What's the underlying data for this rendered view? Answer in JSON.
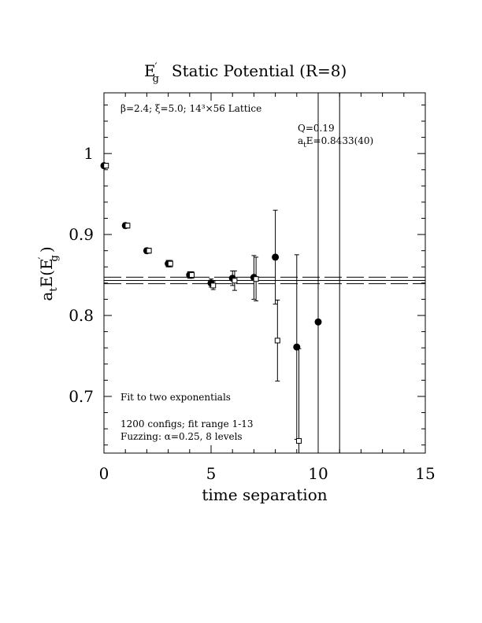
{
  "chart_data": {
    "type": "scatter",
    "title_prefix": "E",
    "title_prime": "′",
    "title_sub": "g",
    "title_rest": "Static Potential (R=8)",
    "ylabel": "a_tE(E'_g)",
    "xlabel": "time separation",
    "xlim": [
      0,
      15
    ],
    "ylim": [
      0.63,
      1.075
    ],
    "x_major_ticks": [
      0,
      5,
      10,
      15
    ],
    "x_tick_labels": [
      "0",
      "5",
      "10",
      "15"
    ],
    "y_major_ticks": [
      0.7,
      0.8,
      0.9,
      1.0
    ],
    "y_tick_labels": [
      "0.7",
      "0.8",
      "0.9",
      "1"
    ],
    "grid": false,
    "annotations": {
      "lattice": "β=2.4; ξ=5.0; 14³×56 Lattice",
      "q": "Q=0.19",
      "energy": "a_tE=0.8433(40)",
      "fit": "Fit to two exponentials",
      "configs": "1200 configs; fit range 1-13",
      "fuzzing": "Fuzzing: α=0.25, 8 levels"
    },
    "fit": {
      "value": 0.8433,
      "error": 0.004
    },
    "series": [
      {
        "marker": "filled-circle",
        "points": [
          {
            "x": 0,
            "y": 0.985,
            "err": 0.003
          },
          {
            "x": 1,
            "y": 0.911,
            "err": 0.003
          },
          {
            "x": 2,
            "y": 0.88,
            "err": 0.003
          },
          {
            "x": 3,
            "y": 0.864,
            "err": 0.004
          },
          {
            "x": 4,
            "y": 0.85,
            "err": 0.004
          },
          {
            "x": 5,
            "y": 0.84,
            "err": 0.005
          },
          {
            "x": 6,
            "y": 0.846,
            "err": 0.009
          },
          {
            "x": 7,
            "y": 0.847,
            "err": 0.027
          },
          {
            "x": 8,
            "y": 0.872,
            "err": 0.058
          },
          {
            "x": 9,
            "y": 0.761,
            "err": 0.114
          },
          {
            "x": 10,
            "y": 0.792,
            "err": 0.5
          },
          {
            "x": 11,
            "y": 0.9,
            "err": 0.6,
            "marker_hidden": true
          }
        ]
      },
      {
        "marker": "open-square",
        "points": [
          {
            "x": 0.1,
            "y": 0.985,
            "err": 0.003
          },
          {
            "x": 1.1,
            "y": 0.911,
            "err": 0.003
          },
          {
            "x": 2.1,
            "y": 0.88,
            "err": 0.003
          },
          {
            "x": 3.1,
            "y": 0.864,
            "err": 0.004
          },
          {
            "x": 4.1,
            "y": 0.85,
            "err": 0.004
          },
          {
            "x": 5.1,
            "y": 0.837,
            "err": 0.005
          },
          {
            "x": 6.1,
            "y": 0.843,
            "err": 0.012
          },
          {
            "x": 7.1,
            "y": 0.845,
            "err": 0.027
          },
          {
            "x": 8.1,
            "y": 0.769,
            "err": 0.05
          },
          {
            "x": 9.1,
            "y": 0.645,
            "err": 0.114
          }
        ]
      }
    ]
  }
}
